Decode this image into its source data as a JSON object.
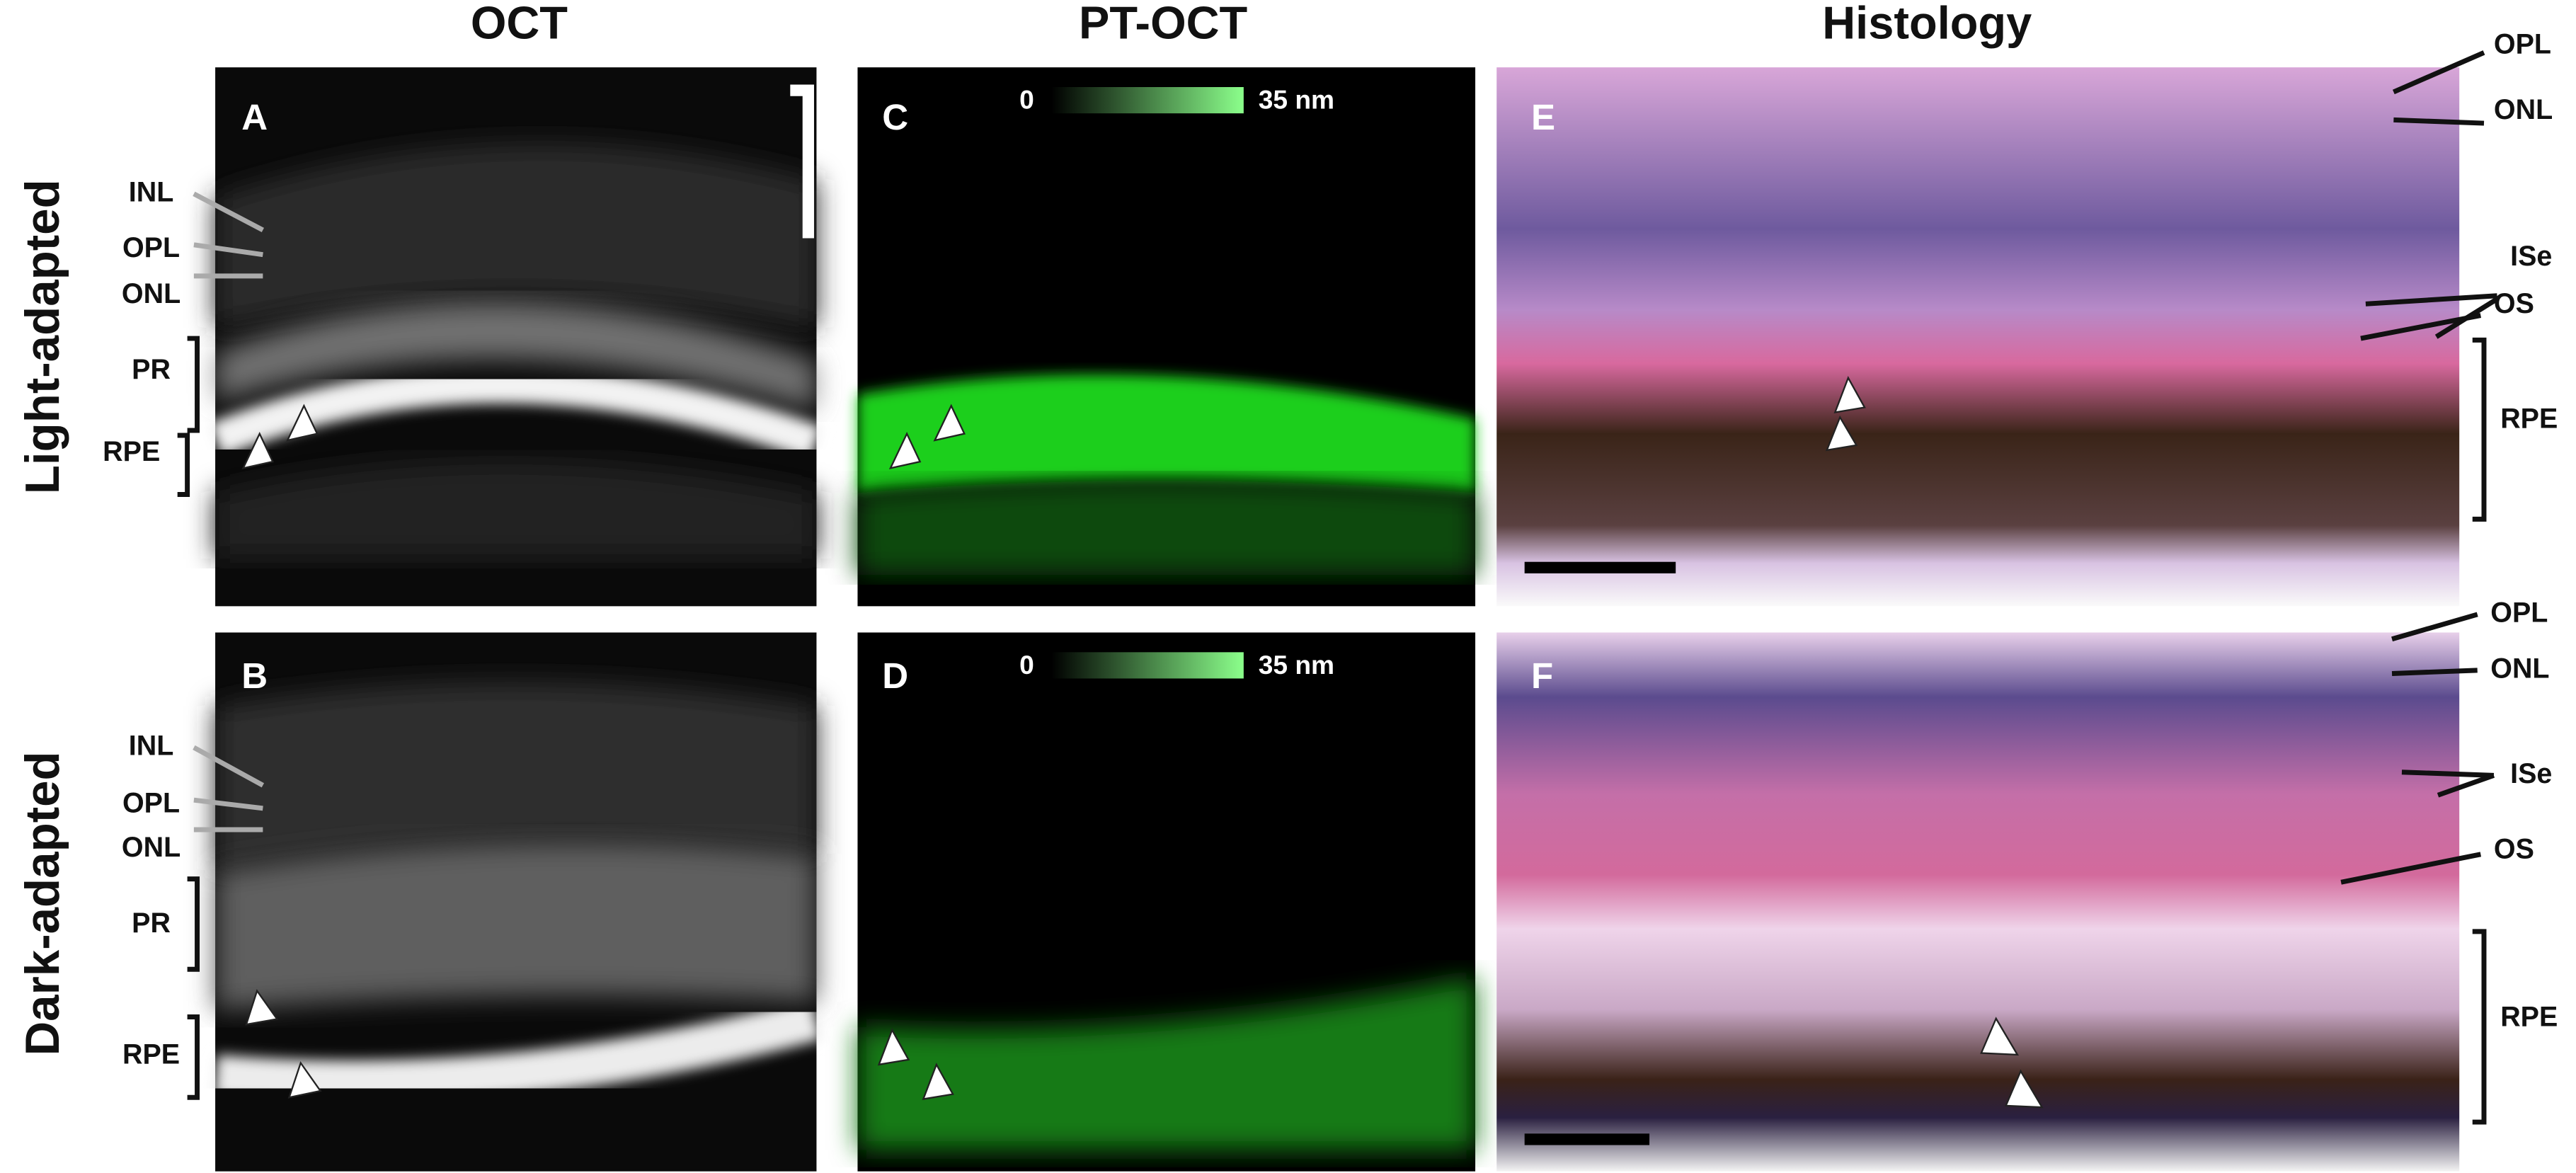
{
  "columns": [
    "OCT",
    "PT-OCT",
    "Histology"
  ],
  "rows": [
    "Light-adapted",
    "Dark-adapted"
  ],
  "panels": [
    {
      "letter": "A",
      "labels": [
        "INL",
        "OPL",
        "ONL",
        "PR",
        "RPE"
      ]
    },
    {
      "letter": "B",
      "labels": [
        "INL",
        "OPL",
        "ONL",
        "PR",
        "RPE"
      ]
    },
    {
      "letter": "C",
      "colorbar": {
        "min": "0",
        "max": "35 nm"
      }
    },
    {
      "letter": "D",
      "colorbar": {
        "min": "0",
        "max": "35 nm"
      }
    },
    {
      "letter": "E",
      "labels": [
        "OPL",
        "ONL",
        "ISe",
        "OS",
        "RPE"
      ]
    },
    {
      "letter": "F",
      "labels": [
        "OPL",
        "ONL",
        "ISe",
        "OS",
        "RPE"
      ]
    }
  ]
}
